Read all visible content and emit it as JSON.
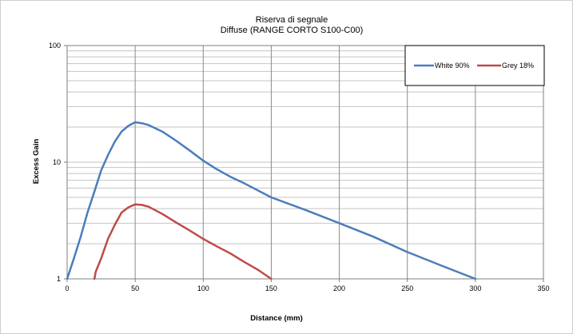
{
  "chart_data": {
    "type": "line",
    "title": "Riserva di segnale",
    "subtitle": "Diffuse (RANGE CORTO S100-C00)",
    "xlabel": "Distance (mm)",
    "ylabel": "Excess Gain",
    "x_scale": "linear",
    "y_scale": "log",
    "xlim": [
      0,
      350
    ],
    "ylim": [
      1,
      100
    ],
    "x_ticks": [
      0,
      50,
      100,
      150,
      200,
      250,
      300,
      350
    ],
    "y_ticks": [
      1,
      10,
      100
    ],
    "grid": true,
    "legend_position": "top-right",
    "series": [
      {
        "name": "White 90%",
        "color": "#4a7ebb",
        "x": [
          0,
          5,
          10,
          15,
          20,
          25,
          30,
          35,
          40,
          45,
          50,
          55,
          60,
          70,
          80,
          90,
          100,
          110,
          120,
          130,
          150,
          175,
          200,
          225,
          250,
          275,
          300
        ],
        "y": [
          1.0,
          1.5,
          2.3,
          3.7,
          5.6,
          8.5,
          11.5,
          15.0,
          18.3,
          20.5,
          22.0,
          21.6,
          20.8,
          18.3,
          15.3,
          12.6,
          10.3,
          8.7,
          7.5,
          6.6,
          5.0,
          3.9,
          3.0,
          2.3,
          1.7,
          1.3,
          1.0
        ]
      },
      {
        "name": "Grey 18%",
        "color": "#be4b48",
        "x": [
          20,
          21,
          25,
          30,
          35,
          40,
          45,
          50,
          55,
          60,
          70,
          80,
          90,
          100,
          110,
          120,
          130,
          140,
          150
        ],
        "y": [
          1.0,
          1.15,
          1.5,
          2.2,
          2.9,
          3.7,
          4.1,
          4.35,
          4.3,
          4.15,
          3.6,
          3.05,
          2.6,
          2.2,
          1.9,
          1.65,
          1.4,
          1.2,
          1.0
        ]
      }
    ]
  }
}
